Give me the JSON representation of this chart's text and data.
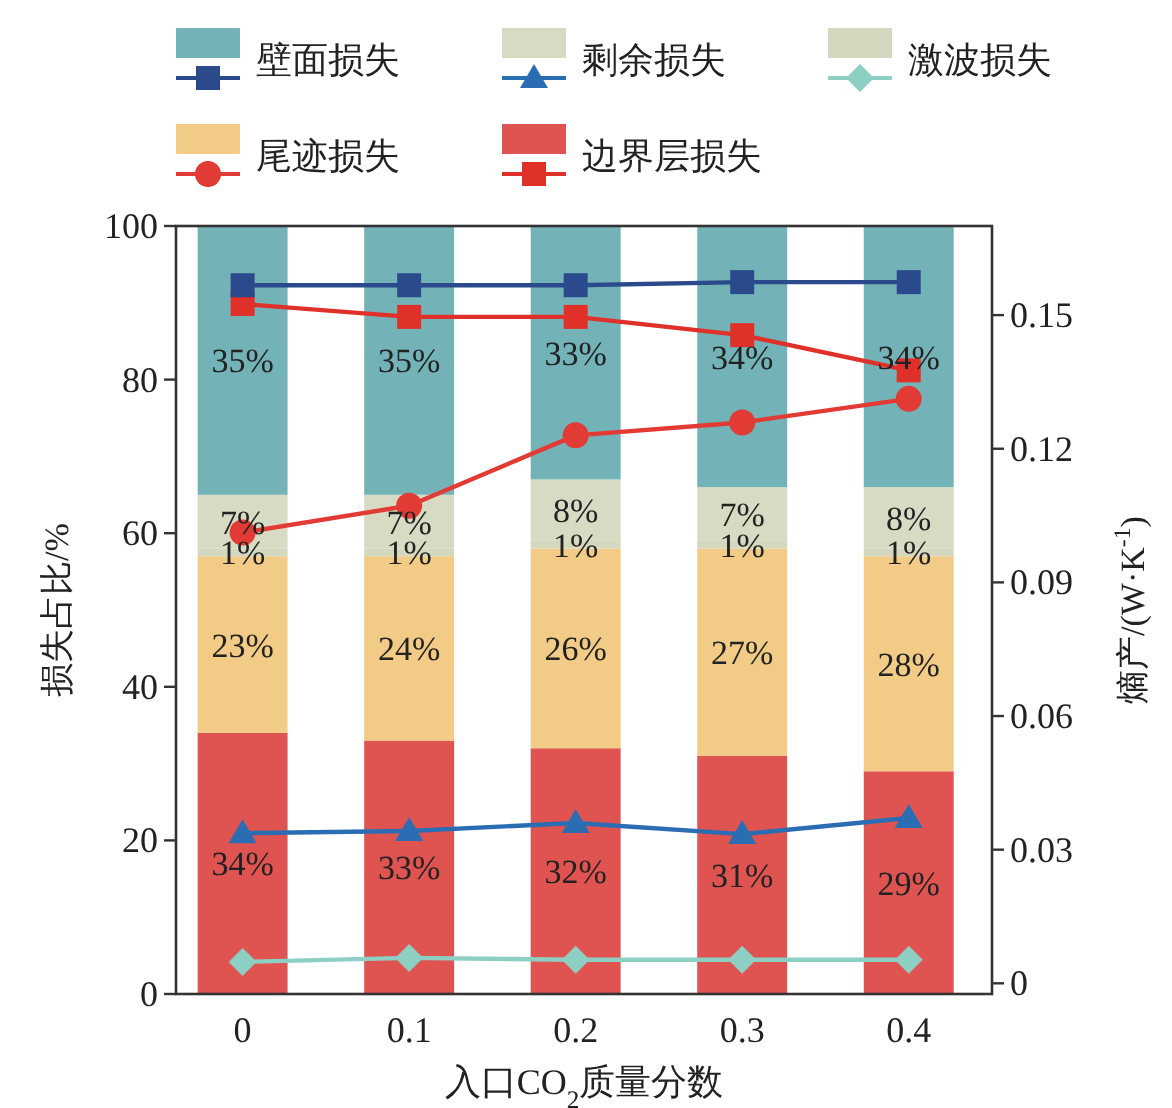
{
  "chart_data": {
    "type": "bar",
    "stacked": true,
    "legend": "top",
    "xlabel": "入口CO$_{2}$质量分数",
    "ylabel": "损失占比/%",
    "y2label": "熵产/(W·K$^{-1}$)",
    "categories": [
      "0",
      "0.1",
      "0.2",
      "0.3",
      "0.4"
    ],
    "ylim": [
      0,
      100
    ],
    "yticks": [
      0,
      20,
      40,
      60,
      80,
      100
    ],
    "y2lim": [
      -0.0024,
      0.17
    ],
    "y2ticks": [
      0,
      0.03,
      0.06,
      0.09,
      0.12,
      0.15
    ],
    "series": [
      {
        "name": "边界层损失",
        "color": "#df5450",
        "values": [
          34,
          33,
          32,
          31,
          29
        ],
        "value_labels": [
          "34%",
          "33%",
          "32%",
          "31%",
          "29%"
        ]
      },
      {
        "name": "尾迹损失",
        "color": "#f2cb86",
        "values": [
          23,
          24,
          26,
          27,
          28
        ],
        "value_labels": [
          "23%",
          "24%",
          "26%",
          "27%",
          "28%"
        ]
      },
      {
        "name": "激波损失",
        "color": "#d3d8bf",
        "values": [
          1,
          1,
          1,
          1,
          1
        ],
        "value_labels": [
          "1%",
          "1%",
          "1%",
          "1%",
          "1%"
        ]
      },
      {
        "name": "剩余损失",
        "color": "#d7dbc3",
        "values": [
          7,
          7,
          8,
          7,
          8
        ],
        "value_labels": [
          "7%",
          "7%",
          "8%",
          "7%",
          "8%"
        ]
      },
      {
        "name": "壁面损失",
        "color": "#73b3b8",
        "values": [
          35,
          35,
          33,
          34,
          34
        ],
        "value_labels": [
          "35%",
          "35%",
          "33%",
          "34%",
          "34%"
        ]
      },
      {
        "type": "line",
        "axis": "y2",
        "marker": "square",
        "color": "#e0302a",
        "values": [
          0.1525,
          0.1496,
          0.1496,
          0.1455,
          0.1376
        ]
      },
      {
        "type": "line",
        "axis": "y2",
        "marker": "circle",
        "color": "#e23a34",
        "values": [
          0.1012,
          0.1072,
          0.123,
          0.1259,
          0.1312
        ]
      },
      {
        "type": "line",
        "axis": "y2",
        "marker": "diamond",
        "color": "#8ecfc4",
        "values": [
          0.0048,
          0.0057,
          0.0053,
          0.0053,
          0.0053
        ]
      },
      {
        "type": "line",
        "axis": "y2",
        "marker": "triangle",
        "color": "#2a6db3",
        "values": [
          0.0337,
          0.0342,
          0.036,
          0.0335,
          0.0371
        ]
      },
      {
        "type": "line",
        "axis": "y2",
        "marker": "square",
        "color": "#2b4a8c",
        "values": [
          0.1567,
          0.1567,
          0.1567,
          0.1574,
          0.1574
        ]
      }
    ]
  }
}
